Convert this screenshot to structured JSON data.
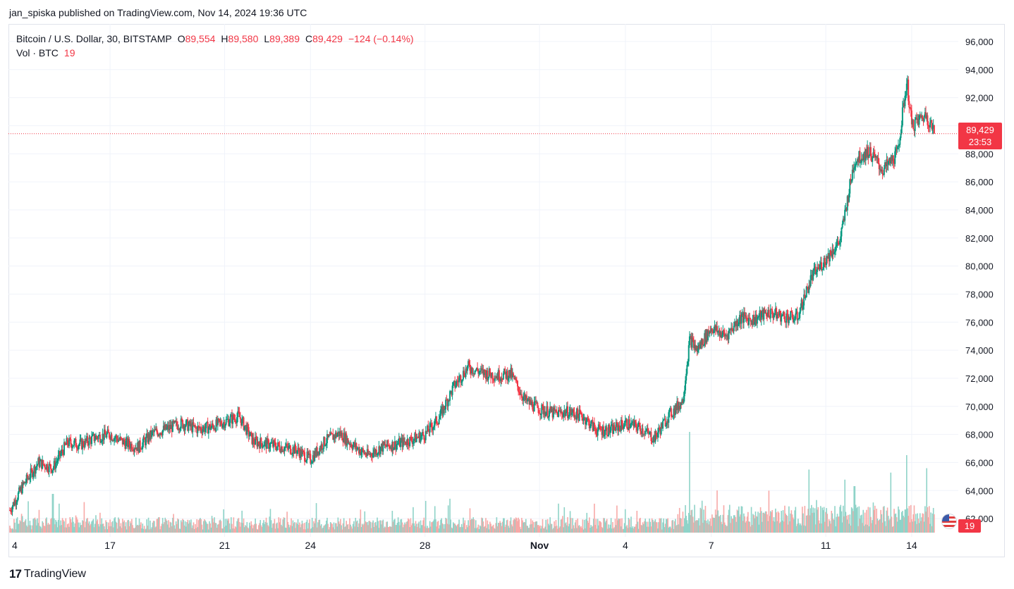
{
  "publish_info": "jan_spiska published on TradingView.com, Nov 14, 2024 19:36 UTC",
  "legend": {
    "symbol": "Bitcoin / U.S. Dollar, 30, BITSTAMP",
    "open_label": "O",
    "open": "89,554",
    "high_label": "H",
    "high": "89,580",
    "low_label": "L",
    "low": "89,389",
    "close_label": "C",
    "close": "89,429",
    "change": "−124 (−0.14%)",
    "volume_label": "Vol · BTC",
    "volume": "19"
  },
  "price_label": {
    "price": "89,429",
    "countdown": "23:53"
  },
  "volume_badge": "19",
  "brand": "TradingView",
  "colors": {
    "up": "#089981",
    "down": "#f23645",
    "up_vol": "#8fd3c8",
    "down_vol": "#f7a9a7",
    "grid": "#f0f3fa",
    "text": "#131722"
  },
  "chart_data": {
    "type": "candlestick",
    "interval": "30",
    "ylim": [
      61000,
      97000
    ],
    "y_ticks": [
      "62,000",
      "64,000",
      "66,000",
      "68,000",
      "70,000",
      "72,000",
      "74,000",
      "76,000",
      "78,000",
      "80,000",
      "82,000",
      "84,000",
      "86,000",
      "88,000",
      "90,000",
      "92,000",
      "94,000",
      "96,000"
    ],
    "x_ticks": [
      "4",
      "17",
      "21",
      "24",
      "28",
      "Nov",
      "4",
      "7",
      "11",
      "14"
    ],
    "last_price": 89429,
    "price_path": [
      [
        "Oct 13 12:00",
        62600
      ],
      [
        "Oct 14 00:00",
        64500
      ],
      [
        "Oct 14 12:00",
        66000
      ],
      [
        "Oct 15 00:00",
        65600
      ],
      [
        "Oct 15 12:00",
        67400
      ],
      [
        "Oct 16 00:00",
        67300
      ],
      [
        "Oct 16 12:00",
        67800
      ],
      [
        "Oct 17 00:00",
        68000
      ],
      [
        "Oct 17 12:00",
        67400
      ],
      [
        "Oct 18 00:00",
        67100
      ],
      [
        "Oct 18 12:00",
        68100
      ],
      [
        "Oct 19 00:00",
        68400
      ],
      [
        "Oct 19 12:00",
        68800
      ],
      [
        "Oct 20 00:00",
        68400
      ],
      [
        "Oct 20 12:00",
        68500
      ],
      [
        "Oct 21 00:00",
        68900
      ],
      [
        "Oct 21 12:00",
        69300
      ],
      [
        "Oct 22 00:00",
        67500
      ],
      [
        "Oct 22 12:00",
        67300
      ],
      [
        "Oct 23 00:00",
        67100
      ],
      [
        "Oct 23 12:00",
        66900
      ],
      [
        "Oct 24 00:00",
        66200
      ],
      [
        "Oct 24 12:00",
        67500
      ],
      [
        "Oct 25 00:00",
        68100
      ],
      [
        "Oct 25 12:00",
        67200
      ],
      [
        "Oct 26 00:00",
        66500
      ],
      [
        "Oct 26 12:00",
        67100
      ],
      [
        "Oct 27 00:00",
        67300
      ],
      [
        "Oct 27 12:00",
        67600
      ],
      [
        "Oct 28 00:00",
        68000
      ],
      [
        "Oct 28 12:00",
        69200
      ],
      [
        "Oct 29 00:00",
        71400
      ],
      [
        "Oct 29 12:00",
        72800
      ],
      [
        "Oct 30 00:00",
        72400
      ],
      [
        "Oct 30 12:00",
        72200
      ],
      [
        "Oct 31 00:00",
        72300
      ],
      [
        "Oct 31 12:00",
        70400
      ],
      [
        "Nov 1 00:00",
        69800
      ],
      [
        "Nov 1 12:00",
        69500
      ],
      [
        "Nov 2 00:00",
        69600
      ],
      [
        "Nov 2 12:00",
        69300
      ],
      [
        "Nov 3 00:00",
        68300
      ],
      [
        "Nov 3 12:00",
        68300
      ],
      [
        "Nov 4 00:00",
        68800
      ],
      [
        "Nov 4 12:00",
        68500
      ],
      [
        "Nov 5 00:00",
        67700
      ],
      [
        "Nov 5 12:00",
        69300
      ],
      [
        "Nov 6 00:00",
        70400
      ],
      [
        "Nov 6 06:00",
        74800
      ],
      [
        "Nov 6 12:00",
        74000
      ],
      [
        "Nov 7 00:00",
        75600
      ],
      [
        "Nov 7 12:00",
        75000
      ],
      [
        "Nov 8 00:00",
        76300
      ],
      [
        "Nov 8 12:00",
        76200
      ],
      [
        "Nov 9 00:00",
        76700
      ],
      [
        "Nov 9 12:00",
        76400
      ],
      [
        "Nov 10 00:00",
        76300
      ],
      [
        "Nov 10 12:00",
        79200
      ],
      [
        "Nov 11 00:00",
        80500
      ],
      [
        "Nov 11 12:00",
        81800
      ],
      [
        "Nov 12 00:00",
        87500
      ],
      [
        "Nov 12 12:00",
        88200
      ],
      [
        "Nov 13 00:00",
        86800
      ],
      [
        "Nov 13 12:00",
        88000
      ],
      [
        "Nov 13 20:00",
        93200
      ],
      [
        "Nov 14 00:00",
        90000
      ],
      [
        "Nov 14 12:00",
        90800
      ],
      [
        "Nov 14 19:30",
        89429
      ]
    ],
    "volume_spikes": [
      [
        "Oct 15 00:00",
        5
      ],
      [
        "Nov 6 06:00",
        13
      ],
      [
        "Nov 12 00:00",
        6
      ],
      [
        "Nov 13 20:00",
        10
      ]
    ]
  }
}
